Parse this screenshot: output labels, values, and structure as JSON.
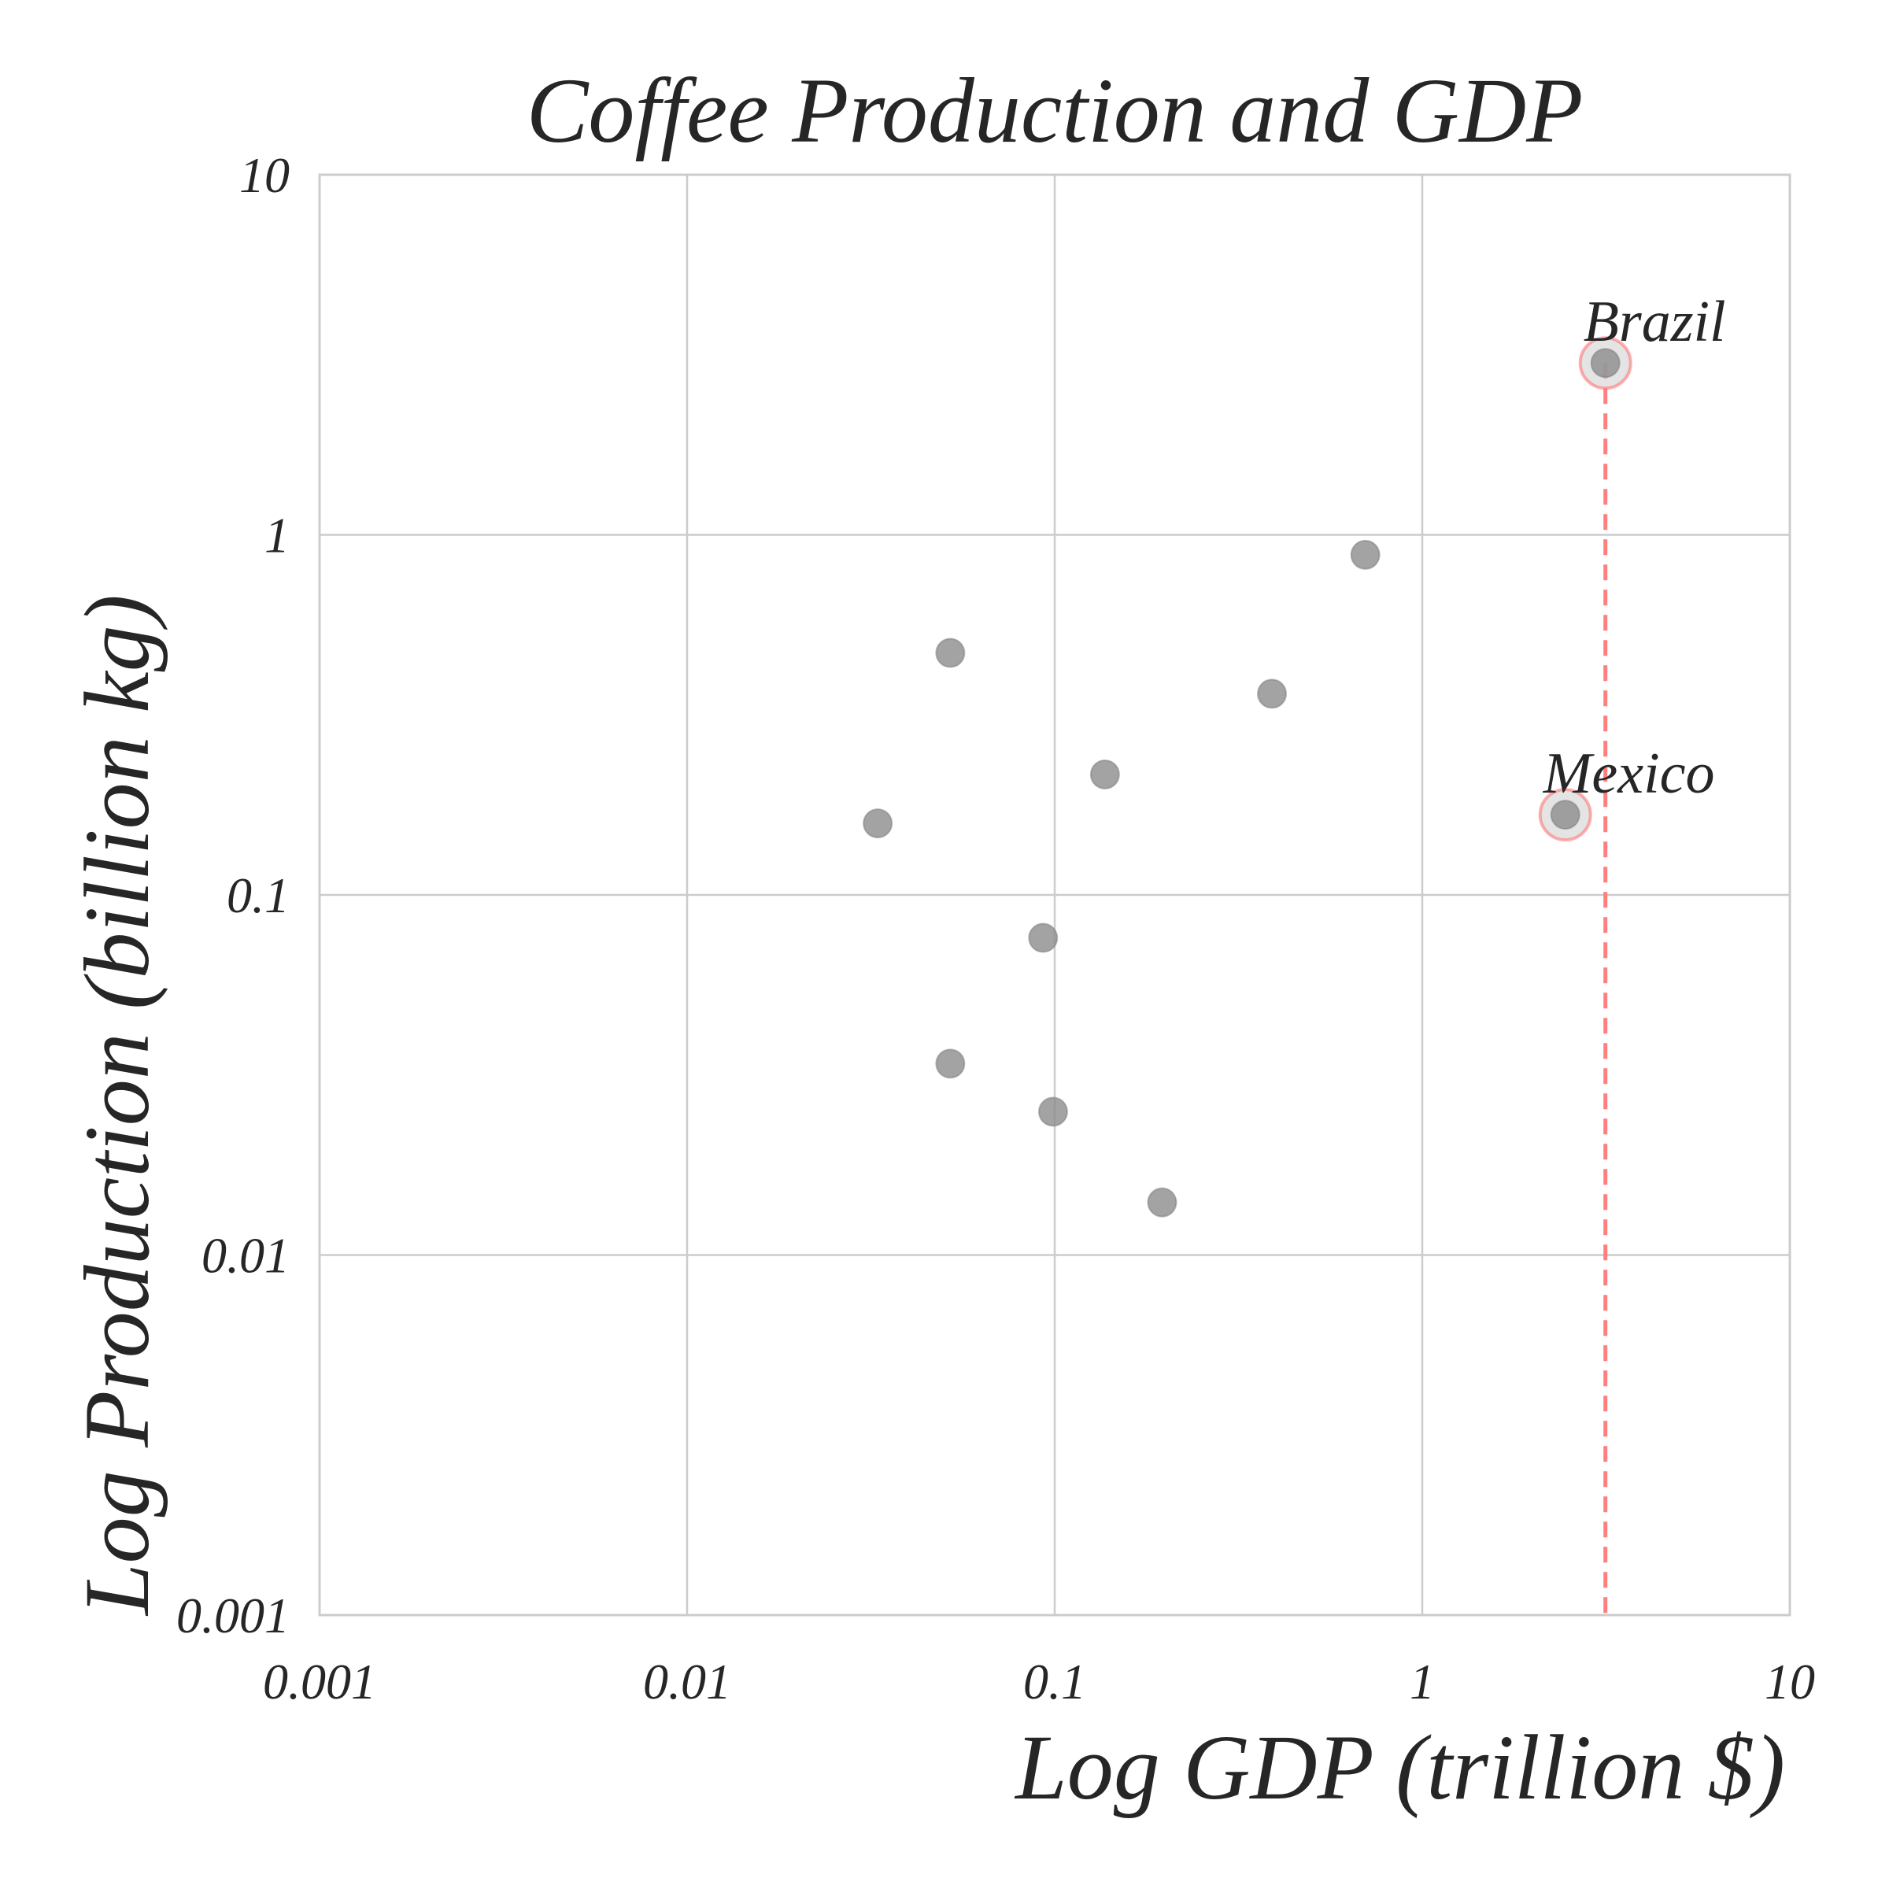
{
  "chart_data": {
    "type": "scatter",
    "title": "Coffee Production and GDP",
    "xlabel": "Log GDP (trillion $)",
    "ylabel": "Log Production (billion kg)",
    "xscale": "log",
    "yscale": "log",
    "xlim": [
      0.001,
      10
    ],
    "ylim": [
      0.001,
      10
    ],
    "grid": true,
    "xticks": [
      0.001,
      0.01,
      0.1,
      1,
      10
    ],
    "yticks": [
      0.001,
      0.01,
      0.1,
      1,
      10
    ],
    "xtick_labels": [
      "0.001",
      "0.01",
      "0.1",
      "1",
      "10"
    ],
    "ytick_labels": [
      "0.001",
      "0.01",
      "0.1",
      "1",
      "10"
    ],
    "colors": {
      "point": "#8c8c8c",
      "highlight": "#ff6b6b",
      "grid": "#cccccc",
      "reference_line": "#ff7f7f"
    },
    "points": [
      {
        "x": 0.052,
        "y": 0.47
      },
      {
        "x": 0.033,
        "y": 0.158
      },
      {
        "x": 0.093,
        "y": 0.076
      },
      {
        "x": 0.052,
        "y": 0.034
      },
      {
        "x": 0.099,
        "y": 0.025
      },
      {
        "x": 0.137,
        "y": 0.216
      },
      {
        "x": 0.196,
        "y": 0.014
      },
      {
        "x": 0.39,
        "y": 0.362
      },
      {
        "x": 0.7,
        "y": 0.88
      },
      {
        "x": 2.45,
        "y": 0.167
      },
      {
        "x": 3.15,
        "y": 3.0
      }
    ],
    "annotations": [
      {
        "text": "Brazil",
        "x": 3.15,
        "y": 3.0
      },
      {
        "text": "Mexico",
        "x": 2.45,
        "y": 0.167
      }
    ],
    "reference_line": {
      "x": 3.15
    }
  }
}
